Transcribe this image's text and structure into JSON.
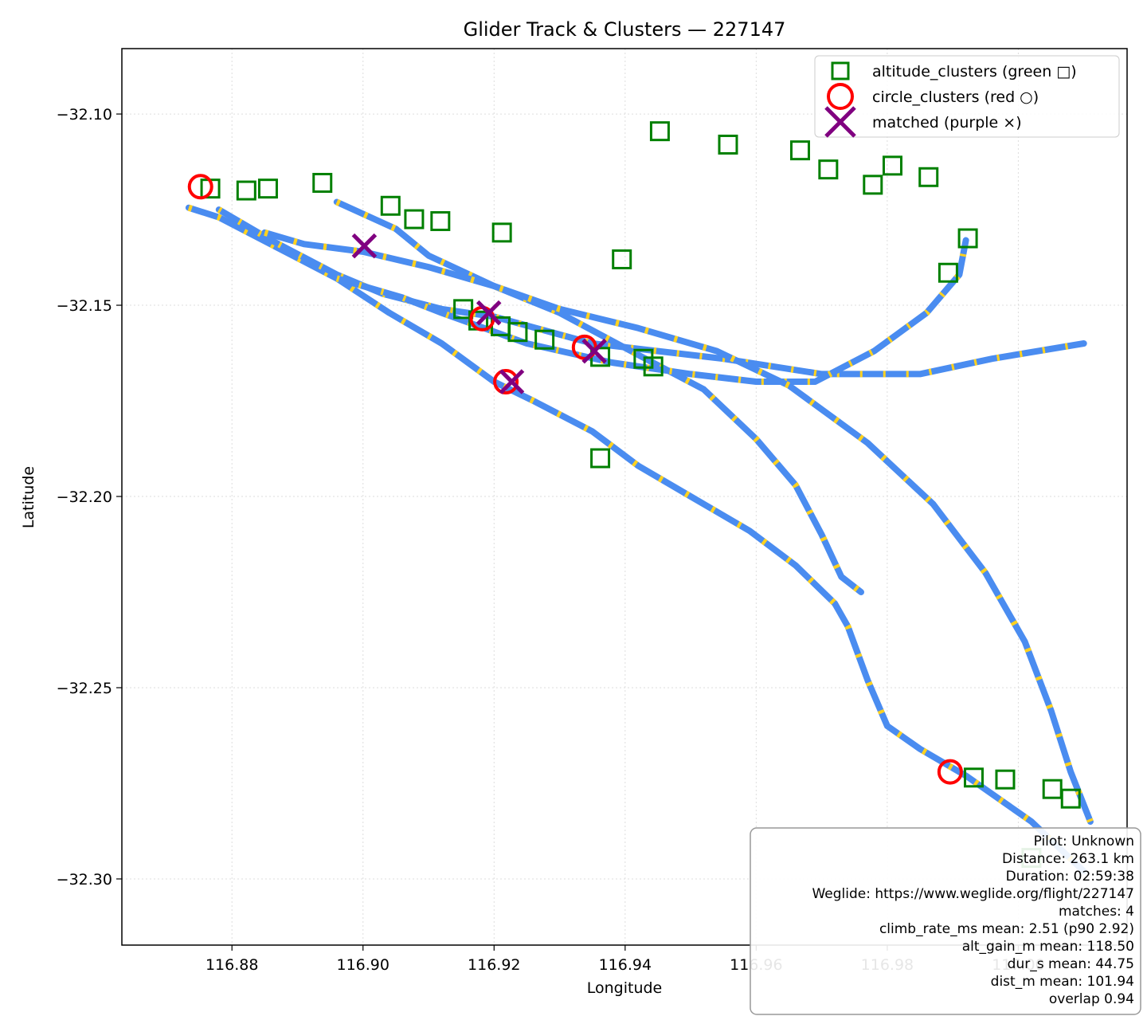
{
  "chart_data": {
    "type": "scatter",
    "title": "Glider Track & Clusters — 227147",
    "xlabel": "Longitude",
    "ylabel": "Latitude",
    "xlim": [
      116.8632,
      117.0166
    ],
    "ylim": [
      -32.3173,
      -32.0829
    ],
    "xticks": [
      116.88,
      116.9,
      116.92,
      116.94,
      116.96,
      116.98,
      117.0
    ],
    "xtick_labels": [
      "116.88",
      "116.90",
      "116.92",
      "116.94",
      "116.96",
      "116.98",
      "117.00"
    ],
    "yticks": [
      -32.1,
      -32.15,
      -32.2,
      -32.25,
      -32.3
    ],
    "ytick_labels": [
      "−32.10",
      "−32.15",
      "−32.20",
      "−32.25",
      "−32.30"
    ],
    "grid": true,
    "legend_position": "top-right",
    "colors": {
      "track": "#4a8cf0",
      "climb": "#ffd21f",
      "altitude_clusters": "#008000",
      "circle_clusters": "#ff0000",
      "matched": "#800080"
    },
    "series": [
      {
        "name": "altitude_clusters (green □)",
        "marker": "square",
        "points": [
          [
            116.8767,
            -32.1195
          ],
          [
            116.8822,
            -32.12
          ],
          [
            116.8855,
            -32.1195
          ],
          [
            116.8938,
            -32.118
          ],
          [
            116.9042,
            -32.124
          ],
          [
            116.9078,
            -32.1275
          ],
          [
            116.9118,
            -32.128
          ],
          [
            116.9212,
            -32.131
          ],
          [
            116.9395,
            -32.138
          ],
          [
            116.9453,
            -32.1045
          ],
          [
            116.9557,
            -32.108
          ],
          [
            116.9667,
            -32.1095
          ],
          [
            116.971,
            -32.1145
          ],
          [
            116.9778,
            -32.1185
          ],
          [
            116.9808,
            -32.1135
          ],
          [
            116.9863,
            -32.1165
          ],
          [
            116.9923,
            -32.1325
          ],
          [
            116.9893,
            -32.1415
          ],
          [
            116.9153,
            -32.151
          ],
          [
            116.9176,
            -32.154
          ],
          [
            116.921,
            -32.1555
          ],
          [
            116.9236,
            -32.157
          ],
          [
            116.9277,
            -32.159
          ],
          [
            116.9362,
            -32.1635
          ],
          [
            116.9428,
            -32.164
          ],
          [
            116.9443,
            -32.166
          ],
          [
            116.9362,
            -32.19
          ],
          [
            116.9932,
            -32.2735
          ],
          [
            116.998,
            -32.274
          ],
          [
            117.0052,
            -32.2765
          ],
          [
            117.008,
            -32.279
          ],
          [
            117.002,
            -32.2945
          ]
        ]
      },
      {
        "name": "circle_clusters (red ○)",
        "marker": "circle",
        "points": [
          [
            116.8752,
            -32.119
          ],
          [
            116.9182,
            -32.1535
          ],
          [
            116.9338,
            -32.161
          ],
          [
            116.9218,
            -32.17
          ],
          [
            116.9896,
            -32.272
          ]
        ]
      },
      {
        "name": "matched (purple ×)",
        "marker": "x",
        "points": [
          [
            116.9002,
            -32.1345
          ],
          [
            116.9192,
            -32.152
          ],
          [
            116.9353,
            -32.162
          ],
          [
            116.9227,
            -32.17
          ]
        ]
      }
    ],
    "track_paths": [
      [
        [
          116.8734,
          -32.1245
        ],
        [
          116.878,
          -32.127
        ],
        [
          116.887,
          -32.135
        ],
        [
          116.896,
          -32.143
        ],
        [
          116.904,
          -32.152
        ],
        [
          116.912,
          -32.16
        ],
        [
          116.92,
          -32.17
        ],
        [
          116.926,
          -32.175
        ],
        [
          116.935,
          -32.183
        ],
        [
          116.942,
          -32.192
        ],
        [
          116.95,
          -32.2
        ],
        [
          116.959,
          -32.209
        ],
        [
          116.966,
          -32.218
        ],
        [
          116.972,
          -32.228
        ],
        [
          116.974,
          -32.234
        ],
        [
          116.977,
          -32.248
        ],
        [
          116.98,
          -32.26
        ],
        [
          116.985,
          -32.266
        ],
        [
          116.992,
          -32.273
        ],
        [
          117.002,
          -32.285
        ],
        [
          117.01,
          -32.298
        ]
      ],
      [
        [
          116.878,
          -32.125
        ],
        [
          116.886,
          -32.133
        ],
        [
          116.896,
          -32.142
        ],
        [
          116.903,
          -32.147
        ],
        [
          116.912,
          -32.151
        ],
        [
          116.92,
          -32.153
        ],
        [
          116.935,
          -32.16
        ],
        [
          116.955,
          -32.164
        ],
        [
          116.97,
          -32.168
        ],
        [
          116.985,
          -32.168
        ],
        [
          116.996,
          -32.164
        ],
        [
          117.01,
          -32.16
        ]
      ],
      [
        [
          116.896,
          -32.123
        ],
        [
          116.905,
          -32.13
        ],
        [
          116.91,
          -32.137
        ],
        [
          116.92,
          -32.145
        ],
        [
          116.93,
          -32.152
        ],
        [
          116.942,
          -32.163
        ],
        [
          116.952,
          -32.172
        ],
        [
          116.96,
          -32.185
        ],
        [
          116.966,
          -32.197
        ],
        [
          116.97,
          -32.21
        ],
        [
          116.973,
          -32.221
        ],
        [
          116.976,
          -32.225
        ]
      ],
      [
        [
          116.896,
          -32.143
        ],
        [
          116.906,
          -32.148
        ],
        [
          116.912,
          -32.152
        ],
        [
          116.925,
          -32.16
        ],
        [
          116.938,
          -32.165
        ],
        [
          116.95,
          -32.168
        ],
        [
          116.96,
          -32.17
        ],
        [
          116.969,
          -32.17
        ],
        [
          116.978,
          -32.162
        ],
        [
          116.986,
          -32.152
        ],
        [
          116.991,
          -32.142
        ],
        [
          116.992,
          -32.133
        ]
      ],
      [
        [
          116.885,
          -32.131
        ],
        [
          116.891,
          -32.134
        ],
        [
          116.9,
          -32.136
        ],
        [
          116.91,
          -32.14
        ],
        [
          116.92,
          -32.145
        ],
        [
          116.93,
          -32.151
        ],
        [
          116.942,
          -32.156
        ],
        [
          116.954,
          -32.162
        ],
        [
          116.965,
          -32.171
        ],
        [
          116.977,
          -32.186
        ],
        [
          116.987,
          -32.202
        ],
        [
          116.995,
          -32.22
        ],
        [
          117.001,
          -32.238
        ],
        [
          117.005,
          -32.256
        ],
        [
          117.008,
          -32.272
        ],
        [
          117.011,
          -32.285
        ]
      ]
    ]
  },
  "legend": {
    "altitude_clusters": "altitude_clusters (green □)",
    "circle_clusters": "circle_clusters (red ○)",
    "matched": "matched (purple ×)"
  },
  "info_box": {
    "lines": [
      "Pilot: Unknown",
      "Distance: 263.1 km",
      "Duration: 02:59:38",
      "Weglide: https://www.weglide.org/flight/227147",
      "matches: 4",
      "climb_rate_ms mean: 2.51 (p90 2.92)",
      "alt_gain_m mean: 118.50",
      "dur_s mean: 44.75",
      "dist_m mean: 101.94",
      "overlap 0.94"
    ]
  }
}
